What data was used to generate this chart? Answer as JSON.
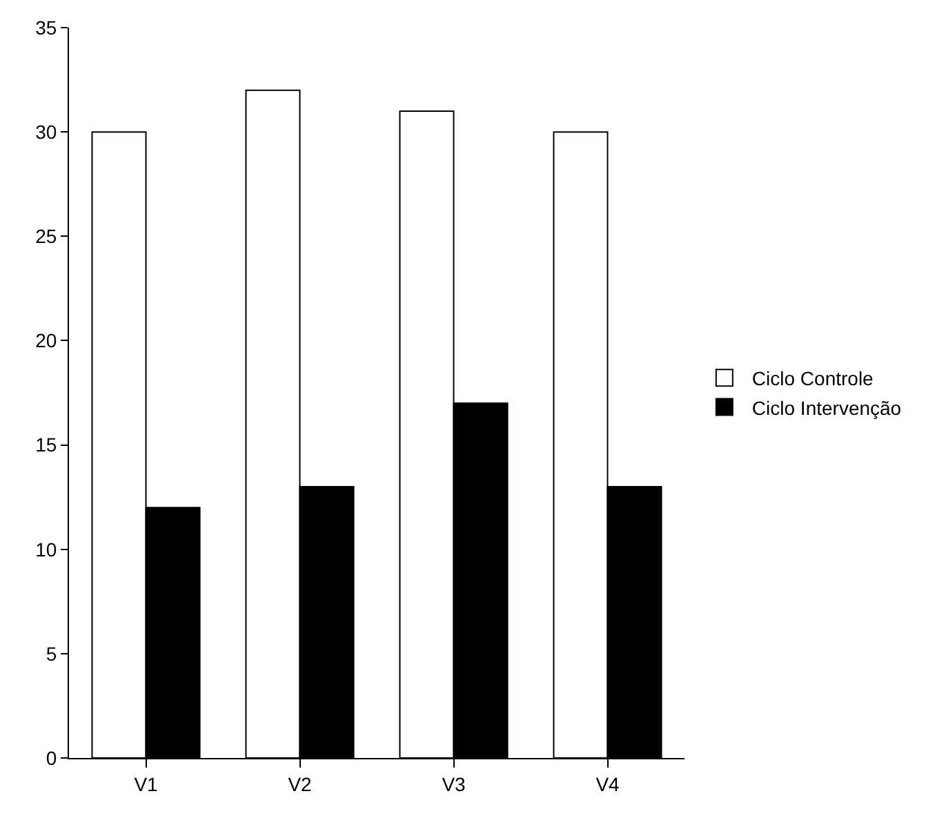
{
  "chart_data": {
    "type": "bar",
    "categories": [
      "V1",
      "V2",
      "V3",
      "V4"
    ],
    "series": [
      {
        "name": "Ciclo Controle",
        "color": "#ffffff",
        "values": [
          30,
          32,
          31,
          30
        ]
      },
      {
        "name": "Ciclo Intervenção",
        "color": "#000000",
        "values": [
          12,
          13,
          17,
          13
        ]
      }
    ],
    "ylim": [
      0,
      35
    ],
    "yticks": [
      0,
      5,
      10,
      15,
      20,
      25,
      30,
      35
    ],
    "legend": "right"
  }
}
